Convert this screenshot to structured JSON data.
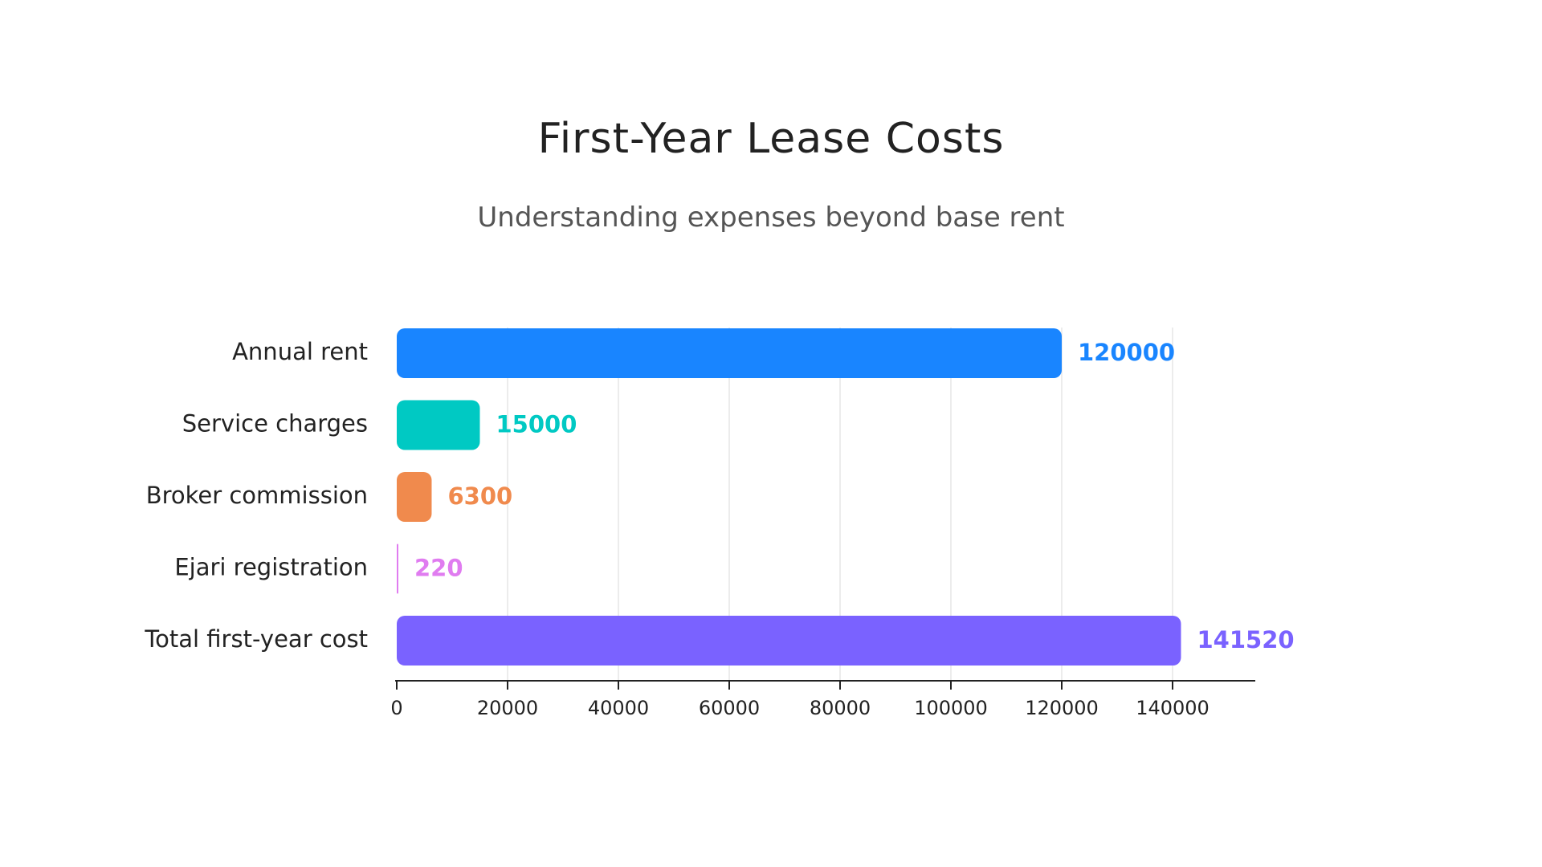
{
  "chart_data": {
    "type": "bar",
    "orientation": "horizontal",
    "title": "First-Year Lease Costs",
    "subtitle": "Understanding expenses beyond base rent",
    "categories": [
      "Annual rent",
      "Service charges",
      "Broker commission",
      "Ejari registration",
      "Total first-year cost"
    ],
    "values": [
      120000,
      15000,
      6300,
      220,
      141520
    ],
    "colors": [
      "#1985FF",
      "#00C9C3",
      "#F08A4D",
      "#E07CF0",
      "#7A62FF"
    ],
    "value_labels": [
      "120000",
      "15000",
      "6300",
      "220",
      "141520"
    ],
    "xlim": [
      0,
      155000
    ],
    "xticks": [
      0,
      20000,
      40000,
      60000,
      80000,
      100000,
      120000,
      140000
    ],
    "xtick_labels": [
      "0",
      "20000",
      "40000",
      "60000",
      "80000",
      "100000",
      "120000",
      "140000"
    ],
    "grid": true,
    "legend": "none"
  }
}
